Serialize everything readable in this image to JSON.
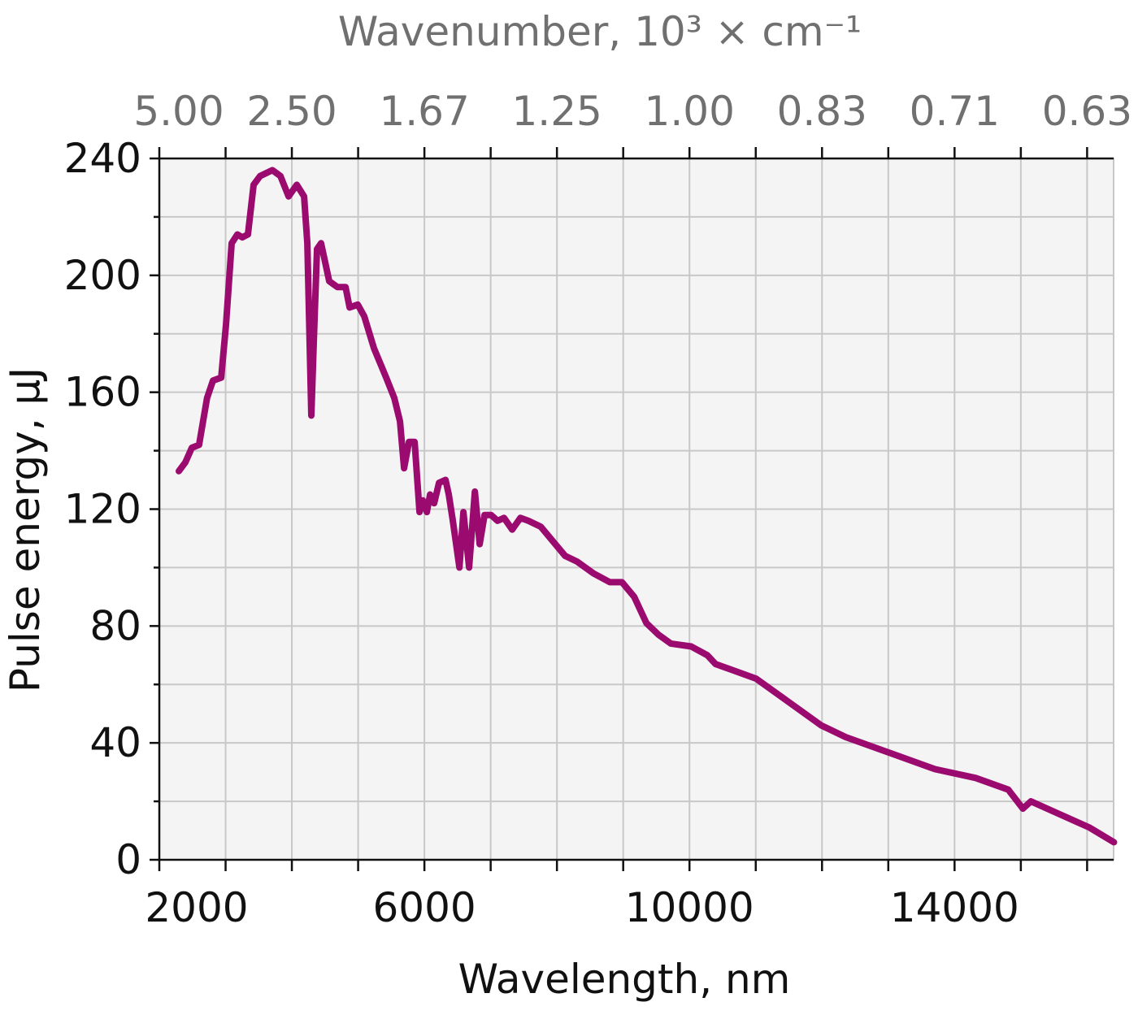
{
  "chart_data": {
    "type": "line",
    "xlabel": "Wavelength, nm",
    "ylabel": "Pulse energy, µJ",
    "top_xlabel": "Wavenumber, 10³ × cm⁻¹",
    "xlim": [
      2000,
      16400
    ],
    "ylim": [
      0,
      240
    ],
    "x_tick_labels": [
      "2000",
      "6000",
      "10000",
      "14000"
    ],
    "x_tick_values": [
      2000,
      6000,
      10000,
      14000
    ],
    "y_tick_labels": [
      "0",
      "40",
      "80",
      "120",
      "160",
      "200",
      "240"
    ],
    "y_tick_values": [
      0,
      40,
      80,
      120,
      160,
      200,
      240
    ],
    "top_tick_labels": [
      "5.00",
      "2.50",
      "1.67",
      "1.25",
      "1.00",
      "0.83",
      "0.71",
      "0.63"
    ],
    "top_tick_positions_nm": [
      2000,
      4000,
      6000,
      8000,
      10000,
      12000,
      14000,
      16000
    ],
    "grid": true,
    "colors": {
      "line": "#9b0a6e",
      "plot_background": "#f4f4f4",
      "grid": "#c8c8c8",
      "top_axis_text": "#707070"
    },
    "series": [
      {
        "x": [
          2294,
          2392,
          2491,
          2600,
          2660,
          2720,
          2810,
          2933,
          3006,
          3092,
          3178,
          3252,
          3337,
          3423,
          3521,
          3706,
          3828,
          3950,
          4074,
          4184,
          4233,
          4294,
          4331,
          4380,
          4441,
          4564,
          4687,
          4810,
          4871,
          4994,
          5092,
          5239,
          5423,
          5546,
          5632,
          5693,
          5767,
          5853,
          5926,
          5975,
          6037,
          6086,
          6147,
          6221,
          6319,
          6368,
          6429,
          6528,
          6589,
          6675,
          6761,
          6834,
          6908,
          7006,
          7104,
          7202,
          7325,
          7448,
          7570,
          7755,
          7939,
          8123,
          8307,
          8552,
          8798,
          8982,
          9166,
          9350,
          9534,
          9718,
          10025,
          10270,
          10393,
          10638,
          11006,
          11374,
          11988,
          12356,
          13092,
          13706,
          14319,
          14810,
          15031,
          15153,
          15546,
          16037,
          16405
        ],
        "y": [
          133,
          136,
          141,
          142,
          150,
          158,
          164,
          165,
          183,
          211,
          214,
          213,
          214,
          231,
          234,
          236,
          234,
          227,
          231,
          227,
          211,
          152,
          177,
          209,
          211,
          198,
          196,
          196,
          189,
          190,
          186,
          175,
          165,
          158,
          150,
          134,
          143,
          143,
          119,
          123,
          119,
          125,
          122,
          129,
          130,
          125,
          116,
          100,
          119,
          100,
          126,
          108,
          118,
          118,
          116,
          117,
          113,
          117,
          116,
          114,
          109,
          104,
          102,
          98,
          95,
          95,
          90,
          81,
          77,
          74,
          73,
          70,
          67,
          65,
          62,
          56,
          46,
          42,
          36,
          31,
          28,
          24,
          17.5,
          20,
          16,
          11,
          6
        ]
      }
    ]
  }
}
